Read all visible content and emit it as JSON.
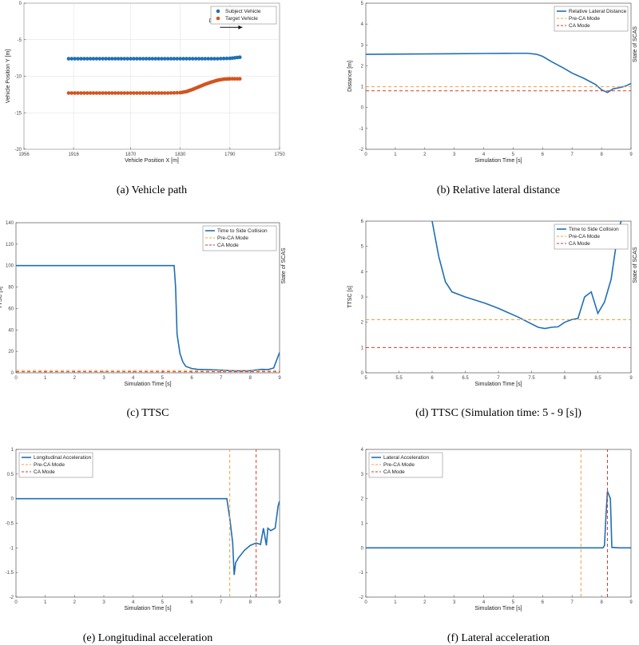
{
  "chart_data": [
    {
      "id": "a",
      "type": "scatter",
      "caption": "(a) Vehicle path",
      "xlabel": "Vehicle Position X [m]",
      "ylabel": "Vehicle Position Y [m]",
      "right_label": "",
      "xlim": [
        1956,
        1750
      ],
      "ylim": [
        -20,
        0
      ],
      "xticks": [
        1956,
        1916,
        1870,
        1830,
        1790,
        1750
      ],
      "yticks": [
        0,
        -5,
        -10,
        -15,
        -20
      ],
      "grid": true,
      "legend_position": "top-right",
      "annotation": {
        "text": "Driving Direction",
        "from": [
          1798,
          -3.3
        ],
        "to": [
          1780,
          -3.3
        ],
        "label_at": [
          1807,
          -2.6
        ]
      },
      "series": [
        {
          "name": "Subject Vehicle",
          "color": "#1f6fb5",
          "style": "dots",
          "x": [
            1920,
            1910,
            1900,
            1890,
            1880,
            1870,
            1860,
            1850,
            1840,
            1830,
            1820,
            1810,
            1800,
            1790,
            1782
          ],
          "y": [
            -7.6,
            -7.6,
            -7.6,
            -7.6,
            -7.6,
            -7.6,
            -7.6,
            -7.6,
            -7.6,
            -7.6,
            -7.6,
            -7.6,
            -7.6,
            -7.55,
            -7.4
          ]
        },
        {
          "name": "Target Vehicle",
          "color": "#d35420",
          "style": "dots",
          "x": [
            1920,
            1910,
            1900,
            1890,
            1880,
            1870,
            1860,
            1850,
            1840,
            1830,
            1825,
            1820,
            1815,
            1810,
            1805,
            1800,
            1795,
            1790,
            1782
          ],
          "y": [
            -12.3,
            -12.3,
            -12.3,
            -12.3,
            -12.3,
            -12.3,
            -12.3,
            -12.3,
            -12.3,
            -12.25,
            -12.1,
            -11.8,
            -11.45,
            -11.1,
            -10.8,
            -10.55,
            -10.4,
            -10.35,
            -10.35
          ]
        }
      ]
    },
    {
      "id": "b",
      "type": "line",
      "caption": "(b) Relative lateral distance",
      "xlabel": "Simulation Time [s]",
      "ylabel": "Distance [m]",
      "right_label": "State of SCAS",
      "xlim": [
        0,
        9
      ],
      "ylim": [
        -2,
        5
      ],
      "xticks": [
        0,
        1,
        2,
        3,
        4,
        5,
        6,
        7,
        8,
        9
      ],
      "yticks": [
        -2,
        -1,
        0,
        1,
        2,
        3,
        4,
        5
      ],
      "grid": false,
      "legend_position": "top-right",
      "series": [
        {
          "name": "Relative Lateral Distance",
          "color": "#1f6fb5",
          "style": "solid",
          "x": [
            0,
            1,
            2,
            3,
            4,
            5,
            5.5,
            5.8,
            6.0,
            6.3,
            6.7,
            7.0,
            7.4,
            7.8,
            8.0,
            8.2,
            8.4,
            8.6,
            8.8,
            9.0
          ],
          "y": [
            2.55,
            2.56,
            2.57,
            2.58,
            2.59,
            2.6,
            2.6,
            2.55,
            2.45,
            2.2,
            1.9,
            1.65,
            1.4,
            1.1,
            0.85,
            0.72,
            0.9,
            0.95,
            1.02,
            1.15
          ]
        },
        {
          "name": "Pre-CA Mode",
          "color": "#f0a03c",
          "style": "dashed",
          "x": [
            0,
            9
          ],
          "y": [
            1.0,
            1.0
          ]
        },
        {
          "name": "CA Mode",
          "color": "#d93a2b",
          "style": "dashed",
          "x": [
            0,
            9
          ],
          "y": [
            0.8,
            0.8
          ]
        }
      ]
    },
    {
      "id": "c",
      "type": "line",
      "caption": "(c) TTSC",
      "xlabel": "Simulation Time [s]",
      "ylabel": "TTSC [s]",
      "right_label": "State of SCAS",
      "xlim": [
        0,
        9
      ],
      "ylim": [
        0,
        140
      ],
      "xticks": [
        0,
        1,
        2,
        3,
        4,
        5,
        6,
        7,
        8,
        9
      ],
      "yticks": [
        0,
        20,
        40,
        60,
        80,
        100,
        120,
        140
      ],
      "grid": false,
      "legend_position": "top-right",
      "series": [
        {
          "name": "Time to Side Collision",
          "color": "#1f6fb5",
          "style": "solid",
          "x": [
            0,
            5.4,
            5.45,
            5.5,
            5.6,
            5.7,
            5.8,
            6.0,
            6.2,
            6.5,
            7.0,
            7.5,
            8.0,
            8.4,
            8.6,
            8.8,
            9.0
          ],
          "y": [
            100,
            100,
            80,
            36,
            18,
            10,
            6,
            4,
            3.2,
            3,
            2.5,
            1.8,
            2,
            3.2,
            3.0,
            4.5,
            19
          ]
        },
        {
          "name": "Pre-CA Mode",
          "color": "#f0a03c",
          "style": "dashed",
          "x": [
            0,
            9
          ],
          "y": [
            2.1,
            2.1
          ]
        },
        {
          "name": "CA Mode",
          "color": "#d93a2b",
          "style": "dashed",
          "x": [
            0,
            9
          ],
          "y": [
            1.0,
            1.0
          ]
        }
      ]
    },
    {
      "id": "d",
      "type": "line",
      "caption": "(d) TTSC (Simulation time: 5 - 9 [s])",
      "xlabel": "Simulation Time [s]",
      "ylabel": "TTSC [s]",
      "right_label": "State of SCAS",
      "xlim": [
        5,
        9
      ],
      "ylim": [
        0,
        6
      ],
      "xticks": [
        5,
        5.5,
        6,
        6.5,
        7,
        7.5,
        8,
        8.5,
        9
      ],
      "yticks": [
        0,
        1,
        2,
        3,
        4,
        5,
        6
      ],
      "grid": false,
      "legend_position": "top-right",
      "series": [
        {
          "name": "Time to Side Collision",
          "color": "#1f6fb5",
          "style": "solid",
          "x": [
            6.0,
            6.1,
            6.2,
            6.3,
            6.5,
            6.8,
            7.0,
            7.3,
            7.6,
            7.7,
            7.8,
            7.9,
            8.0,
            8.1,
            8.2,
            8.3,
            8.4,
            8.5,
            8.6,
            8.7,
            8.8,
            8.85
          ],
          "y": [
            6.0,
            4.6,
            3.6,
            3.2,
            3.0,
            2.75,
            2.55,
            2.2,
            1.8,
            1.75,
            1.8,
            1.82,
            2.0,
            2.1,
            2.15,
            3.0,
            3.2,
            2.35,
            2.8,
            3.7,
            5.5,
            6.0
          ]
        },
        {
          "name": "Pre-CA Mode",
          "color": "#f0a03c",
          "style": "dashed",
          "x": [
            5,
            9
          ],
          "y": [
            2.1,
            2.1
          ]
        },
        {
          "name": "CA Mode",
          "color": "#d93a2b",
          "style": "dashed",
          "x": [
            5,
            9
          ],
          "y": [
            1.0,
            1.0
          ]
        }
      ]
    },
    {
      "id": "e",
      "type": "line",
      "caption": "(e) Longitudinal acceleration",
      "xlabel": "Simulation Time [s]",
      "ylabel": "",
      "right_label": "",
      "xlim": [
        0,
        9
      ],
      "ylim": [
        -2,
        1
      ],
      "xticks": [
        0,
        1,
        2,
        3,
        4,
        5,
        6,
        7,
        8,
        9
      ],
      "yticks": [
        -2,
        -1.5,
        -1,
        -0.5,
        0,
        0.5,
        1
      ],
      "grid": false,
      "legend_position": "top-left",
      "series": [
        {
          "name": "Longitudinal Acceleration",
          "color": "#1f6fb5",
          "style": "solid",
          "x": [
            0,
            7.2,
            7.3,
            7.4,
            7.45,
            7.5,
            7.6,
            7.8,
            8.0,
            8.2,
            8.35,
            8.45,
            8.55,
            8.6,
            8.7,
            8.85,
            8.95,
            9.0
          ],
          "y": [
            0,
            0,
            -0.4,
            -0.9,
            -1.55,
            -1.3,
            -1.2,
            -1.05,
            -0.95,
            -0.9,
            -0.93,
            -0.6,
            -0.95,
            -0.6,
            -0.65,
            -0.6,
            -0.15,
            -0.05
          ]
        },
        {
          "name": "Pre-CA Mode",
          "color": "#f0a03c",
          "style": "vdashed",
          "x": [
            7.3,
            7.3
          ],
          "y": [
            -2,
            1
          ]
        },
        {
          "name": "CA Mode",
          "color": "#d93a2b",
          "style": "vdashed",
          "x": [
            8.2,
            8.2
          ],
          "y": [
            -2,
            1
          ]
        }
      ]
    },
    {
      "id": "f",
      "type": "line",
      "caption": "(f) Lateral acceleration",
      "xlabel": "Simulation Time [s]",
      "ylabel": "",
      "right_label": "",
      "xlim": [
        0,
        9
      ],
      "ylim": [
        -2,
        4
      ],
      "xticks": [
        0,
        1,
        2,
        3,
        4,
        5,
        6,
        7,
        8,
        9
      ],
      "yticks": [
        -2,
        -1,
        0,
        1,
        2,
        3,
        4
      ],
      "grid": false,
      "legend_position": "top-left",
      "series": [
        {
          "name": "Lateral Acceleration",
          "color": "#1f6fb5",
          "style": "solid",
          "x": [
            0,
            8.05,
            8.1,
            8.15,
            8.2,
            8.25,
            8.3,
            8.35,
            8.6,
            8.7,
            9.0
          ],
          "y": [
            0,
            0,
            0.1,
            1.3,
            2.3,
            2.15,
            2.0,
            0.02,
            0.0,
            0.0,
            0.0
          ]
        },
        {
          "name": "Pre-CA Mode",
          "color": "#f0a03c",
          "style": "vdashed",
          "x": [
            7.3,
            7.3
          ],
          "y": [
            -2,
            4
          ]
        },
        {
          "name": "CA Mode",
          "color": "#d93a2b",
          "style": "vdashed",
          "x": [
            8.2,
            8.2
          ],
          "y": [
            -2,
            4
          ]
        }
      ]
    }
  ]
}
